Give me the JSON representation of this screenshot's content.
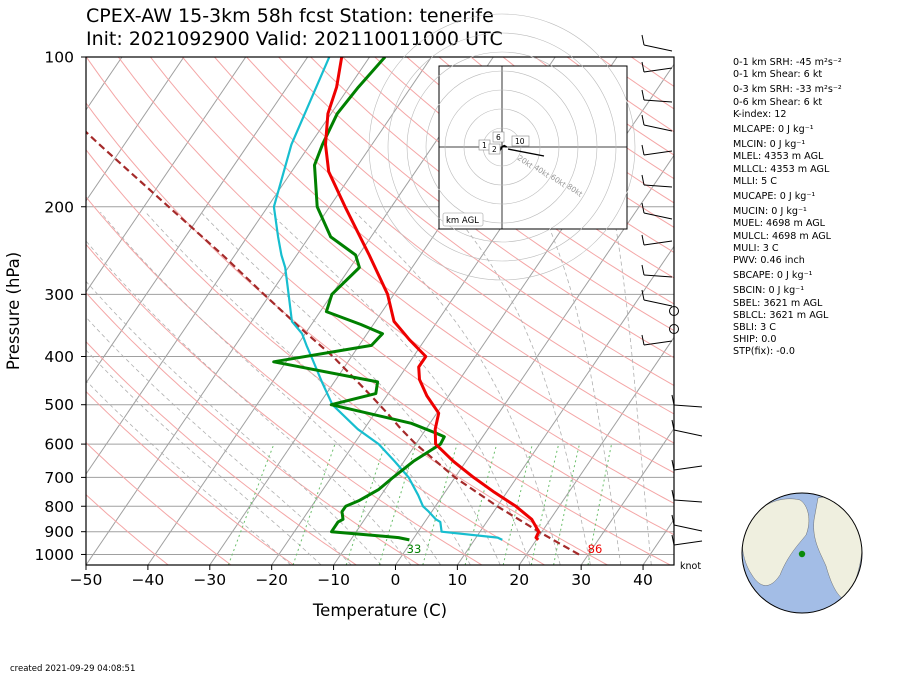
{
  "titles": {
    "line1": "CPEX-AW 15-3km  58h fcst  Station: tenerife",
    "line2": "Init: 2021092900  Valid: 202110011000 UTC"
  },
  "created": "created 2021-09-29 04:08:51",
  "colors": {
    "temperature": "#ee0000",
    "dewpoint": "#008000",
    "wetbulb": "#17becf",
    "parcel": "#a52a2a",
    "isotherm": "#a0a0a0",
    "dry_adiabat": "#f4a6a6",
    "moist_adiabat": "#b0b0b0",
    "mixing_ratio": "#6cbf6c",
    "globe_ocean": "#a3bde6",
    "globe_land": "#efefdf",
    "station_marker": "#0a8a0a"
  },
  "stats": [
    "0-1 km SRH: -45 m²s⁻²",
    "0-1 km Shear: 6 kt",
    "0-3 km SRH: -33 m²s⁻²",
    "0-6 km Shear: 6 kt",
    "K-index: 12",
    "MLCAPE: 0 J kg⁻¹",
    "MLCIN: 0 J kg⁻¹",
    "MLEL: 4353 m AGL",
    "MLLCL: 4353 m AGL",
    "MLLI: 5 C",
    "MUCAPE: 0 J kg⁻¹",
    "MUCIN: 0 J kg⁻¹",
    "MUEL: 4698 m AGL",
    "MULCL: 4698 m AGL",
    "MULI: 3 C",
    "PWV: 0.46 inch",
    "SBCAPE: 0 J kg⁻¹",
    "SBCIN: 0 J kg⁻¹",
    "SBEL: 3621 m AGL",
    "SBLCL: 3621 m AGL",
    "SBLI: 3 C",
    "SHIP: 0.0",
    "STP(fix): -0.0"
  ],
  "chart_data": {
    "type": "line",
    "subtype": "skew-T log-P diagram",
    "xlabel": "Temperature (C)",
    "ylabel": "Pressure (hPa)",
    "xlim": [
      -50,
      45
    ],
    "ylim": [
      1050,
      100
    ],
    "y_scale": "log",
    "x_ticks": [
      -50,
      -40,
      -30,
      -20,
      -10,
      0,
      10,
      20,
      30,
      40
    ],
    "y_ticks": [
      100,
      200,
      300,
      400,
      500,
      600,
      700,
      800,
      900,
      1000
    ],
    "grid": true,
    "surface_temp_label": "86",
    "surface_dewpoint_label": "33",
    "series": [
      {
        "name": "Temperature",
        "p": [
          935,
          925,
          900,
          850,
          800,
          750,
          700,
          650,
          600,
          560,
          520,
          480,
          445,
          420,
          400,
          370,
          340,
          300,
          250,
          200,
          170,
          150,
          130,
          115,
          100
        ],
        "t": [
          20.3,
          19.7,
          19.5,
          17.0,
          13.0,
          8.0,
          3.0,
          -2.0,
          -6.8,
          -8.5,
          -9.7,
          -13.5,
          -16.5,
          -18.0,
          -18.0,
          -22.5,
          -27.0,
          -31.0,
          -38.3,
          -47.5,
          -54.0,
          -57.5,
          -60.5,
          -62.0,
          -64.5
        ]
      },
      {
        "name": "Dewpoint",
        "p": [
          935,
          925,
          900,
          860,
          850,
          820,
          800,
          780,
          740,
          700,
          650,
          600,
          580,
          570,
          545,
          500,
          475,
          450,
          410,
          380,
          360,
          345,
          325,
          300,
          265,
          250,
          230,
          200,
          165,
          150,
          130,
          115,
          100
        ],
        "t": [
          -0.5,
          -2.5,
          -14.0,
          -14.0,
          -13.5,
          -14.5,
          -14.5,
          -13.0,
          -11.0,
          -10.0,
          -8.5,
          -6.0,
          -6.2,
          -8.0,
          -13.0,
          -28.0,
          -22.0,
          -23.0,
          -42.0,
          -28.0,
          -27.5,
          -32.0,
          -39.0,
          -40.0,
          -38.5,
          -40.5,
          -46.5,
          -52.0,
          -57.0,
          -58.0,
          -59.0,
          -58.5,
          -57.5
        ]
      },
      {
        "name": "Wet-bulb",
        "p": [
          935,
          925,
          900,
          860,
          850,
          820,
          800,
          760,
          700,
          650,
          600,
          560,
          500,
          450,
          400,
          380,
          360,
          340,
          300,
          265,
          250,
          230,
          200,
          150,
          100
        ],
        "t": [
          14.5,
          13.5,
          3.8,
          2.5,
          1.5,
          -0.5,
          -2.0,
          -4.0,
          -7.5,
          -11.5,
          -16.0,
          -21.0,
          -27.8,
          -32.0,
          -36.5,
          -38.5,
          -40.5,
          -43.5,
          -47.0,
          -50.5,
          -52.5,
          -55.0,
          -59.0,
          -63.0,
          -66.5
        ]
      },
      {
        "name": "Parcel",
        "p": [
          1000,
          900,
          800,
          700,
          600,
          560,
          520,
          480,
          440,
          400,
          350,
          300,
          250,
          200,
          150,
          110
        ],
        "t": [
          28.5,
          19.5,
          10.0,
          0.0,
          -10.0,
          -14.0,
          -18.0,
          -22.5,
          -27.5,
          -33.0,
          -41.5,
          -51.0,
          -62.0,
          -76.0,
          -94.0,
          -113.0
        ]
      }
    ],
    "hodograph": {
      "label": "km AGL",
      "speed_ring_labels": [
        "20kt",
        "40kt",
        "60kt",
        "80kt"
      ],
      "height_labels": [
        "1",
        "2",
        "6",
        "10"
      ],
      "u": [
        -4,
        -3,
        -1,
        0,
        1,
        2
      ],
      "v": [
        0,
        -1,
        -1.5,
        0,
        0.5,
        0
      ]
    },
    "wind_barbs_unit": "knot",
    "globe": {
      "station": "tenerife",
      "lat": 28.3,
      "lon": -16.5
    }
  }
}
